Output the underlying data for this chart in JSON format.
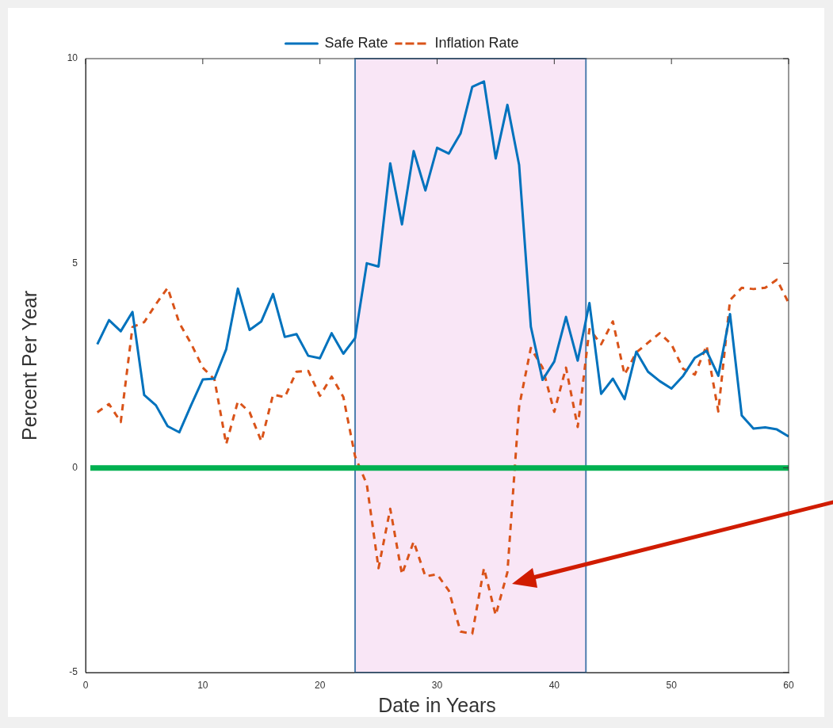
{
  "chart_data": {
    "type": "line",
    "xlabel": "Date in Years",
    "ylabel": "Percent Per Year",
    "x": [
      1,
      2,
      3,
      4,
      5,
      6,
      7,
      8,
      9,
      10,
      11,
      12,
      13,
      14,
      15,
      16,
      17,
      18,
      19,
      20,
      21,
      22,
      23,
      24,
      25,
      26,
      27,
      28,
      29,
      30,
      31,
      32,
      33,
      34,
      35,
      36,
      37,
      38,
      39,
      40,
      41,
      42,
      43,
      44,
      45,
      46,
      47,
      48,
      49,
      50,
      51,
      52,
      53,
      54,
      55,
      56,
      57,
      58,
      59,
      60
    ],
    "series": [
      {
        "name": "Safe Rate",
        "color": "#0072bd",
        "line_style": "solid",
        "values": [
          3.02,
          3.61,
          3.34,
          3.81,
          1.78,
          1.53,
          1.02,
          0.87,
          1.53,
          2.16,
          2.18,
          2.9,
          4.38,
          3.37,
          3.58,
          4.25,
          3.2,
          3.27,
          2.74,
          2.68,
          3.29,
          2.79,
          3.17,
          5.0,
          4.92,
          7.44,
          5.95,
          7.74,
          6.78,
          7.82,
          7.68,
          8.17,
          9.31,
          9.44,
          7.56,
          8.87,
          7.4,
          3.45,
          2.15,
          2.6,
          3.69,
          2.62,
          4.03,
          1.81,
          2.18,
          1.68,
          2.84,
          2.35,
          2.12,
          1.94,
          2.25,
          2.69,
          2.86,
          2.25,
          3.76,
          1.28,
          0.96,
          0.99,
          0.94,
          0.77
        ]
      },
      {
        "name": "Inflation Rate",
        "color": "#d95319",
        "line_style": "dashed",
        "values": [
          1.36,
          1.56,
          1.12,
          3.44,
          3.56,
          4.0,
          4.4,
          3.54,
          3.04,
          2.45,
          2.16,
          0.58,
          1.63,
          1.36,
          0.65,
          1.79,
          1.73,
          2.35,
          2.37,
          1.76,
          2.23,
          1.73,
          0.28,
          -0.4,
          -2.45,
          -1.0,
          -2.6,
          -1.8,
          -2.65,
          -2.6,
          -3.0,
          -4.0,
          -4.05,
          -2.45,
          -3.6,
          -2.55,
          1.5,
          2.93,
          2.45,
          1.37,
          2.45,
          1.0,
          3.39,
          3.02,
          3.58,
          2.28,
          2.82,
          3.06,
          3.29,
          3.02,
          2.42,
          2.28,
          2.99,
          1.38,
          4.1,
          4.4,
          4.37,
          4.4,
          4.6,
          4.03
        ]
      }
    ],
    "xlim": [
      0,
      60
    ],
    "xticks": [
      0,
      10,
      20,
      30,
      40,
      50,
      60
    ],
    "ylim": [
      -5,
      10
    ],
    "yticks": [
      -5,
      0,
      5,
      10
    ],
    "grid": false,
    "legend": "top",
    "marker": "none",
    "ref_lines": [
      {
        "axis": "y",
        "value": 0,
        "color": "#00b050"
      }
    ],
    "bands": [
      {
        "axis": "x",
        "from": 23,
        "to": 42.7,
        "color": "#f9e6f6"
      }
    ]
  }
}
